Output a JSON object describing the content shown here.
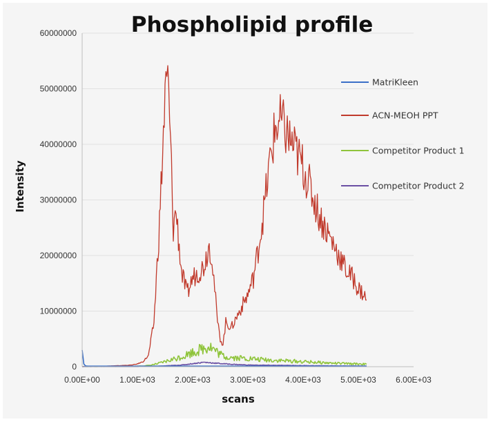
{
  "chart_data": {
    "type": "line",
    "title": "Phospholipid profile",
    "xlabel": "scans",
    "ylabel": "Intensity",
    "xlim": [
      0,
      6000
    ],
    "ylim": [
      0,
      60000000
    ],
    "x_ticks": [
      "0.00E+00",
      "1.00E+03",
      "2.00E+03",
      "3.00E+03",
      "4.00E+03",
      "5.00E+03",
      "6.00E+03"
    ],
    "x_tick_values": [
      0,
      1000,
      2000,
      3000,
      4000,
      5000,
      6000
    ],
    "y_ticks": [
      "0",
      "10000000",
      "20000000",
      "30000000",
      "40000000",
      "50000000",
      "60000000"
    ],
    "y_tick_values": [
      0,
      10000000,
      20000000,
      30000000,
      40000000,
      50000000,
      60000000
    ],
    "grid": "horizontal",
    "legend_position": "right",
    "series": [
      {
        "name": "MatriKleen",
        "color": "#3a6fc7",
        "x": [
          0,
          30,
          60,
          100,
          500,
          1000,
          1500,
          2000,
          2500,
          3000,
          3500,
          4000,
          4500,
          5000,
          5150
        ],
        "y": [
          3000000,
          500000,
          150000,
          100000,
          100000,
          100000,
          100000,
          100000,
          100000,
          100000,
          100000,
          100000,
          100000,
          100000,
          100000
        ]
      },
      {
        "name": "ACN-MEOH PPT",
        "color": "#c0392b",
        "x": [
          0,
          400,
          700,
          900,
          1000,
          1100,
          1200,
          1300,
          1400,
          1500,
          1550,
          1600,
          1650,
          1700,
          1800,
          1900,
          2000,
          2100,
          2200,
          2300,
          2350,
          2400,
          2450,
          2500,
          2550,
          2600,
          2700,
          2800,
          2900,
          3000,
          3100,
          3200,
          3300,
          3400,
          3500,
          3600,
          3700,
          3800,
          3900,
          4000,
          4100,
          4200,
          4300,
          4400,
          4500,
          4600,
          4700,
          4800,
          4900,
          5000,
          5100,
          5150
        ],
        "y": [
          50000,
          100000,
          200000,
          300000,
          500000,
          900000,
          2000000,
          8000000,
          26000000,
          48000000,
          52000000,
          40000000,
          25000000,
          28000000,
          17000000,
          13000000,
          16000000,
          17000000,
          18000000,
          22000000,
          20000000,
          14000000,
          8000000,
          5000000,
          4000000,
          8000000,
          7000000,
          9000000,
          11000000,
          13000000,
          16000000,
          22000000,
          29000000,
          37000000,
          43000000,
          44000000,
          42000000,
          40000000,
          38000000,
          36000000,
          33000000,
          30000000,
          27000000,
          25000000,
          23000000,
          21000000,
          19000000,
          17000000,
          16000000,
          14000000,
          13000000,
          12000000
        ]
      },
      {
        "name": "Competitor Product 1",
        "color": "#8fc43b",
        "x": [
          0,
          800,
          1000,
          1200,
          1400,
          1600,
          1800,
          2000,
          2200,
          2300,
          2400,
          2500,
          2600,
          2800,
          3000,
          3200,
          3400,
          3600,
          3800,
          4000,
          4200,
          4400,
          4600,
          4800,
          5000,
          5150
        ],
        "y": [
          30000,
          50000,
          100000,
          200000,
          600000,
          1200000,
          1800000,
          2600000,
          3300000,
          3800000,
          3000000,
          2200000,
          1800000,
          1600000,
          1500000,
          1300000,
          1200000,
          1100000,
          1000000,
          900000,
          800000,
          700000,
          600000,
          550000,
          500000,
          450000
        ]
      },
      {
        "name": "Competitor Product 2",
        "color": "#6a4fa3",
        "x": [
          0,
          1000,
          1400,
          1800,
          2200,
          2600,
          3000,
          3500,
          4000,
          4500,
          5000,
          5150
        ],
        "y": [
          20000,
          30000,
          100000,
          300000,
          800000,
          500000,
          300000,
          250000,
          200000,
          150000,
          120000,
          100000
        ]
      }
    ]
  }
}
